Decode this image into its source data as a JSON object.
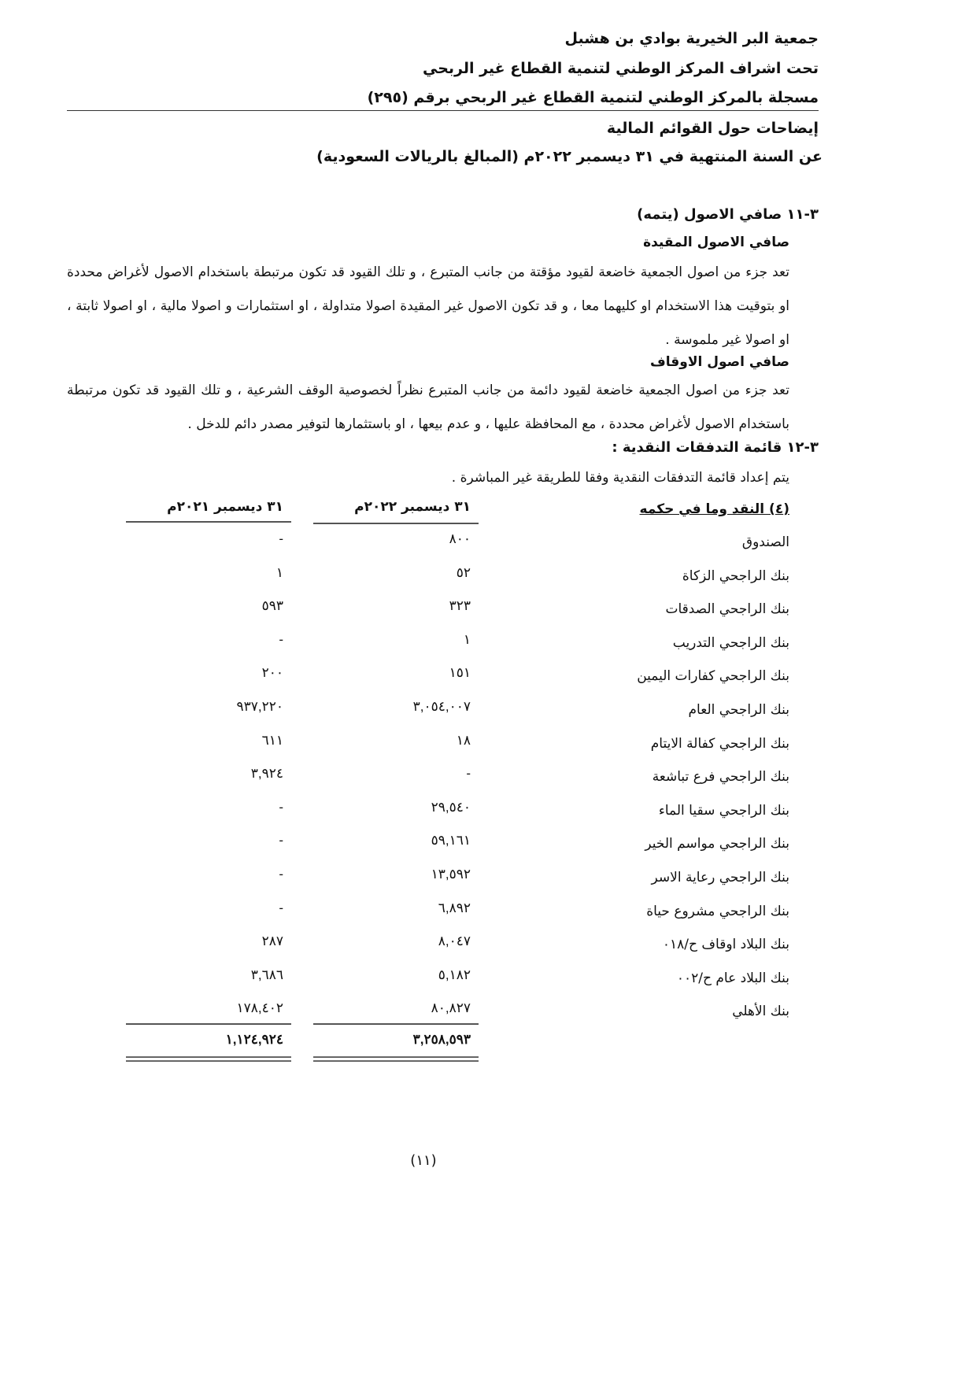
{
  "header": {
    "org": "جمعية البر الخيرية بوادي بن هشبل",
    "supervision": "تحت اشراف المركز الوطني لتنمية القطاع غير الربحي",
    "registration": "مسجلة بالمركز الوطني لتنمية القطاع غير الربحي برقم (٢٩٥)",
    "notes_title": "إيضاحات حول القوائم المالية",
    "period": "عن السنة المنتهية في ٣١ ديسمبر ٢٠٢٢م (المبالغ بالريالات السعودية)"
  },
  "section_11": {
    "title": "٣-١١  صافي الاصول (يتمه)",
    "restricted_title": "صافي الاصول  المقيدة",
    "restricted_text": "تعد جزء من اصول الجمعية خاضعة لقيود مؤقتة من جانب المتبرع ، و تلك القيود قد تكون مرتبطة باستخدام الاصول لأغراض محددة او بتوقيت هذا الاستخدام او كليهما معا ، و قد تكون الاصول غير المقيدة اصولا متداولة ، او استثمارات و اصولا مالية ، او اصولا ثابتة ، او اصولا غير ملموسة .",
    "endowment_title": "صافي اصول الاوقاف",
    "endowment_text": "تعد جزء من اصول الجمعية خاضعة لقيود دائمة من جانب المتبرع نظراً لخصوصية الوقف الشرعية ، و تلك القيود قد تكون مرتبطة باستخدام الاصول لأغراض محددة ، مع المحافظة عليها ، و عدم بيعها ، او باستثمارها لتوفير مصدر دائم للدخل ."
  },
  "section_12": {
    "title": "٣-١٢  قائمة التدفقات النقدية :",
    "text": "يتم إعداد قائمة التدفقات النقدية وفقا للطريقة غير المباشرة  ."
  },
  "table": {
    "title": "(٤) النقد وما في حكمه",
    "col_2022": "٣١ ديسمبر ٢٠٢٢م",
    "col_2021": "٣١ ديسمبر ٢٠٢١م",
    "rows": [
      {
        "label": "الصندوق",
        "v2022": "٨٠٠",
        "v2021": "-"
      },
      {
        "label": "بنك الراجحي الزكاة",
        "v2022": "٥٢",
        "v2021": "١"
      },
      {
        "label": "بنك الراجحي الصدقات",
        "v2022": "٣٢٣",
        "v2021": "٥٩٣"
      },
      {
        "label": "بنك الراجحي التدريب",
        "v2022": "١",
        "v2021": "-"
      },
      {
        "label": "بنك الراجحي كفارات اليمين",
        "v2022": "١٥١",
        "v2021": "٢٠٠"
      },
      {
        "label": "بنك الراجحي العام",
        "v2022": "٣,٠٥٤,٠٠٧",
        "v2021": "٩٣٧,٢٢٠"
      },
      {
        "label": "بنك الراجحي كفالة الايتام",
        "v2022": "١٨",
        "v2021": "٦١١"
      },
      {
        "label": "بنك الراجحي فرع تباشعة",
        "v2022": "-",
        "v2021": "٣,٩٢٤"
      },
      {
        "label": "بنك الراجحي سقيا الماء",
        "v2022": "٢٩,٥٤٠",
        "v2021": "-"
      },
      {
        "label": "بنك الراجحي مواسم الخير",
        "v2022": "٥٩,١٦١",
        "v2021": "-"
      },
      {
        "label": "بنك الراجحي رعاية الاسر",
        "v2022": "١٣,٥٩٢",
        "v2021": "-"
      },
      {
        "label": "بنك الراجحي مشروع حياة",
        "v2022": "٦,٨٩٢",
        "v2021": "-"
      },
      {
        "label": "بنك البلاد اوقاف ح/٠١٨",
        "v2022": "٨,٠٤٧",
        "v2021": "٢٨٧"
      },
      {
        "label": "بنك البلاد عام ح/٠٠٢",
        "v2022": "٥,١٨٢",
        "v2021": "٣,٦٨٦"
      },
      {
        "label": "بنك الأهلي",
        "v2022": "٨٠,٨٢٧",
        "v2021": "١٧٨,٤٠٢"
      }
    ],
    "total_2022": "٣,٢٥٨,٥٩٣",
    "total_2021": "١,١٢٤,٩٢٤"
  },
  "page_number": "(١١)"
}
